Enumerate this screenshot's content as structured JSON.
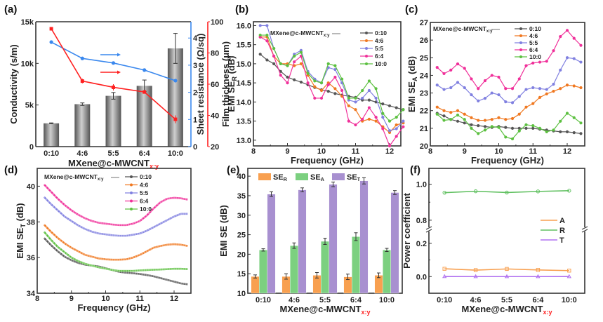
{
  "figure": {
    "panel_labels": [
      "(a)",
      "(b)",
      "(c)",
      "(d)",
      "(e)",
      "(f)"
    ]
  },
  "colors": {
    "c0_10": "#555555",
    "c4_6": "#f07820",
    "c5_5": "#8080e0",
    "c6_4": "#f0309a",
    "c10_0": "#5cc040",
    "red": "#ff2020",
    "blue": "#3a88ee",
    "bar_gray": "#888888",
    "se_r": "#f8a050",
    "se_a": "#7cd080",
    "se_t": "#a890d0",
    "coef_A": "#f8a050",
    "coef_R": "#60c060",
    "coef_T": "#b070f0"
  },
  "chart_data": [
    {
      "panel": "(a)",
      "type": "bar",
      "categories": [
        "0:10",
        "4:6",
        "5:5",
        "6:4",
        "10:0"
      ],
      "xlabel_main": "MXene@c-MWCNT",
      "xlabel_sub": "x:y",
      "ylabel": "Conductivity (s/m)",
      "ylim": [
        0,
        15000
      ],
      "yticks": [
        "0",
        "5k",
        "10k",
        "15k"
      ],
      "bars": {
        "name": "Conductivity",
        "values": [
          2800,
          5100,
          6100,
          7300,
          11800
        ],
        "errors": [
          50,
          150,
          400,
          700,
          1800
        ]
      },
      "right_axis_1": {
        "label": "Sheet resistance (Ω/sq)",
        "ylim": [
          0,
          4.6
        ],
        "yticks": [
          "0",
          "1",
          "2",
          "3",
          "4"
        ],
        "values": [
          3.85,
          3.25,
          3.08,
          2.82,
          2.43
        ]
      },
      "right_axis_2": {
        "label": "Film thickness (μm)",
        "ylim": [
          20,
          100
        ],
        "yticks": [
          "20",
          "40",
          "60",
          "80",
          "100"
        ],
        "values": [
          95.5,
          62,
          58,
          55,
          37.5
        ],
        "errors": [
          0.5,
          1.5,
          2,
          1,
          2.5
        ]
      }
    },
    {
      "panel": "(b)",
      "type": "line",
      "xlabel": "Frequency (GHz)",
      "ylabel": "EMI SE",
      "ylabel_sub": "R",
      "ylabel_unit": " (dB)",
      "xlim": [
        8,
        12.4
      ],
      "ylim": [
        12.85,
        16.1
      ],
      "xticks": [
        "8",
        "9",
        "10",
        "11",
        "12"
      ],
      "yticks": [
        "13.0",
        "13.5",
        "14.0",
        "14.5",
        "15.0",
        "15.5",
        "16.0"
      ],
      "legend_title": "MXene@c-MWCNT",
      "legend_title_sub": "x:y",
      "x": [
        8.2,
        8.4,
        8.6,
        8.8,
        9.0,
        9.2,
        9.4,
        9.6,
        9.8,
        10.0,
        10.2,
        10.4,
        10.6,
        10.8,
        11.0,
        11.2,
        11.4,
        11.6,
        11.8,
        12.0,
        12.2,
        12.4
      ],
      "series": [
        {
          "name": "0:10",
          "values": [
            15.25,
            15.1,
            15.0,
            14.8,
            14.65,
            14.58,
            14.52,
            14.45,
            14.38,
            14.32,
            14.28,
            14.22,
            14.18,
            14.15,
            14.12,
            14.05,
            14.05,
            14.0,
            13.95,
            13.9,
            13.85,
            13.8
          ]
        },
        {
          "name": "4:6",
          "values": [
            15.7,
            15.7,
            15.2,
            15.0,
            15.0,
            14.95,
            15.0,
            14.7,
            14.4,
            14.3,
            14.5,
            14.35,
            14.15,
            13.9,
            13.8,
            13.5,
            13.55,
            13.5,
            13.35,
            13.2,
            13.4,
            13.45
          ]
        },
        {
          "name": "5:5",
          "values": [
            16.0,
            16.0,
            15.4,
            15.0,
            14.95,
            15.25,
            15.35,
            14.8,
            14.6,
            14.5,
            14.9,
            14.85,
            14.5,
            14.05,
            14.0,
            14.1,
            14.3,
            14.1,
            13.6,
            13.25,
            13.3,
            13.5
          ]
        },
        {
          "name": "6:4",
          "values": [
            15.7,
            15.6,
            15.2,
            14.7,
            14.5,
            15.05,
            15.2,
            14.5,
            14.1,
            14.1,
            14.45,
            14.65,
            14.3,
            13.5,
            13.4,
            13.55,
            13.85,
            13.6,
            13.3,
            12.85,
            13.1,
            13.35
          ]
        },
        {
          "name": "10:0",
          "values": [
            15.75,
            15.75,
            15.4,
            15.0,
            14.95,
            15.2,
            15.3,
            14.75,
            14.55,
            14.5,
            15.0,
            14.95,
            14.6,
            14.1,
            14.1,
            14.3,
            14.55,
            14.35,
            13.7,
            13.5,
            13.6,
            13.8
          ]
        }
      ]
    },
    {
      "panel": "(c)",
      "type": "line",
      "xlabel": "Frequency (GHz)",
      "ylabel": "EMI SE",
      "ylabel_sub": "A",
      "ylabel_unit": " (dB)",
      "xlim": [
        8,
        12.5
      ],
      "ylim": [
        20,
        27
      ],
      "xticks": [
        "8",
        "9",
        "10",
        "11",
        "12"
      ],
      "yticks": [
        "20",
        "21",
        "22",
        "23",
        "24",
        "25",
        "26",
        "27"
      ],
      "legend_title": "MXene@c-MWCNT",
      "legend_title_sub": "x:y",
      "x": [
        8.2,
        8.4,
        8.6,
        8.8,
        9.0,
        9.2,
        9.4,
        9.6,
        9.8,
        10.0,
        10.2,
        10.4,
        10.6,
        10.8,
        11.0,
        11.2,
        11.4,
        11.6,
        11.8,
        12.0,
        12.2,
        12.4
      ],
      "series": [
        {
          "name": "0:10",
          "values": [
            21.85,
            21.7,
            21.5,
            21.4,
            21.3,
            21.2,
            21.15,
            21.1,
            21.05,
            21.1,
            21.05,
            21.0,
            21.0,
            21.0,
            21.0,
            20.95,
            20.9,
            20.85,
            20.8,
            20.8,
            20.75,
            20.7
          ]
        },
        {
          "name": "4:6",
          "values": [
            22.2,
            22.0,
            21.9,
            22.0,
            21.8,
            21.6,
            21.45,
            21.45,
            21.5,
            21.6,
            21.5,
            21.55,
            21.8,
            22.2,
            22.4,
            22.75,
            22.95,
            23.1,
            23.25,
            23.45,
            23.4,
            23.3
          ]
        },
        {
          "name": "5:5",
          "values": [
            23.45,
            23.2,
            23.3,
            23.6,
            23.3,
            22.9,
            22.55,
            22.7,
            23.0,
            22.9,
            22.5,
            22.45,
            22.8,
            23.2,
            23.3,
            23.25,
            23.2,
            23.5,
            24.3,
            25.0,
            24.95,
            24.75
          ]
        },
        {
          "name": "6:4",
          "values": [
            24.45,
            24.1,
            24.3,
            24.65,
            24.4,
            23.8,
            23.25,
            23.7,
            24.0,
            23.9,
            23.25,
            23.25,
            23.8,
            24.55,
            24.7,
            24.75,
            24.8,
            25.4,
            26.2,
            26.55,
            26.1,
            25.7
          ]
        },
        {
          "name": "10:0",
          "values": [
            21.8,
            21.45,
            21.5,
            21.75,
            21.5,
            21.0,
            20.7,
            20.9,
            21.1,
            21.05,
            20.5,
            20.4,
            20.85,
            21.2,
            21.15,
            21.0,
            20.8,
            20.9,
            21.4,
            21.85,
            21.6,
            21.3
          ]
        }
      ]
    },
    {
      "panel": "(d)",
      "type": "line",
      "xlabel": "Frequency (GHz)",
      "ylabel": "EMI SE",
      "ylabel_sub": "T",
      "ylabel_unit": " (dB)",
      "xlim": [
        8,
        12.5
      ],
      "ylim": [
        34,
        41
      ],
      "xticks": [
        "8",
        "9",
        "10",
        "11",
        "12"
      ],
      "yticks": [
        "34",
        "36",
        "38",
        "40"
      ],
      "legend_title": "MXene@c-MWCNT",
      "legend_title_sub": "x:y",
      "x": [
        8.2,
        8.4,
        8.6,
        8.8,
        9.0,
        9.2,
        9.4,
        9.6,
        9.8,
        10.0,
        10.2,
        10.4,
        10.6,
        10.8,
        11.0,
        11.2,
        11.4,
        11.6,
        11.8,
        12.0,
        12.2,
        12.4
      ],
      "series": [
        {
          "name": "0:10",
          "values": [
            37.1,
            36.7,
            36.35,
            36.05,
            35.85,
            35.7,
            35.6,
            35.55,
            35.5,
            35.4,
            35.3,
            35.2,
            35.15,
            35.12,
            35.08,
            35.02,
            34.95,
            34.85,
            34.75,
            34.65,
            34.55,
            34.5
          ]
        },
        {
          "name": "4:6",
          "values": [
            37.85,
            37.45,
            37.1,
            36.8,
            36.55,
            36.35,
            36.15,
            36.05,
            35.95,
            35.9,
            35.88,
            35.88,
            35.9,
            36.0,
            36.15,
            36.35,
            36.55,
            36.65,
            36.72,
            36.75,
            36.72,
            36.65
          ]
        },
        {
          "name": "5:5",
          "values": [
            39.4,
            39.0,
            38.65,
            38.3,
            38.05,
            37.8,
            37.6,
            37.45,
            37.35,
            37.3,
            37.25,
            37.22,
            37.22,
            37.28,
            37.35,
            37.5,
            37.7,
            37.9,
            38.1,
            38.3,
            38.45,
            38.45
          ]
        },
        {
          "name": "6:4",
          "values": [
            40.1,
            39.7,
            39.3,
            38.95,
            38.65,
            38.4,
            38.2,
            38.05,
            37.95,
            37.9,
            37.85,
            37.82,
            37.82,
            37.9,
            38.05,
            38.35,
            38.75,
            39.1,
            39.3,
            39.35,
            39.32,
            39.25
          ]
        },
        {
          "name": "10:0",
          "values": [
            37.45,
            37.0,
            36.6,
            36.3,
            36.0,
            35.8,
            35.65,
            35.55,
            35.45,
            35.38,
            35.3,
            35.25,
            35.25,
            35.25,
            35.28,
            35.3,
            35.32,
            35.33,
            35.35,
            35.37,
            35.37,
            35.35
          ]
        }
      ]
    },
    {
      "panel": "(e)",
      "type": "bar",
      "categories": [
        "0:10",
        "4:6",
        "5:5",
        "6:4",
        "10:0"
      ],
      "xlabel_main": "MXene@c-MWCNT",
      "xlabel_sub": "x:y",
      "ylabel": "EMI SE (dB)",
      "ylim": [
        10,
        42
      ],
      "yticks": [
        "10",
        "15",
        "20",
        "25",
        "30",
        "35",
        "40"
      ],
      "series": [
        {
          "name": "SE",
          "sub": "R",
          "values": [
            14.3,
            14.3,
            14.6,
            14.2,
            14.6
          ],
          "errors": [
            0.4,
            0.7,
            0.7,
            0.7,
            0.6
          ]
        },
        {
          "name": "SE",
          "sub": "A",
          "values": [
            21.1,
            22.2,
            23.3,
            24.5,
            21.1
          ],
          "errors": [
            0.3,
            0.7,
            0.8,
            1.0,
            0.4
          ]
        },
        {
          "name": "SE",
          "sub": "T",
          "values": [
            35.4,
            36.5,
            37.9,
            38.8,
            35.8
          ],
          "errors": [
            0.6,
            0.5,
            0.6,
            0.8,
            0.5
          ]
        }
      ]
    },
    {
      "panel": "(f)",
      "type": "line",
      "categories": [
        "0:10",
        "4:6",
        "5:5",
        "6:4",
        "10:0"
      ],
      "xlabel_main": "MXene@c-MWCNT",
      "xlabel_sub": "x:y",
      "ylabel": "Power coefficient",
      "broken_axis": true,
      "ylim_lower": [
        -0.1,
        0.25
      ],
      "ylim_upper": [
        0.78,
        1.1
      ],
      "yticks_lower": [
        "0.0",
        "0.2"
      ],
      "yticks_upper": [
        "0.8",
        "1.0"
      ],
      "legend": "right-middle",
      "series": [
        {
          "name": "A",
          "values": [
            0.047,
            0.039,
            0.046,
            0.04,
            0.036
          ]
        },
        {
          "name": "R",
          "values": [
            0.953,
            0.961,
            0.954,
            0.96,
            0.964
          ]
        },
        {
          "name": "T",
          "values": [
            0.0004,
            0.0002,
            0.0002,
            0.0001,
            0.0003
          ]
        }
      ]
    }
  ]
}
